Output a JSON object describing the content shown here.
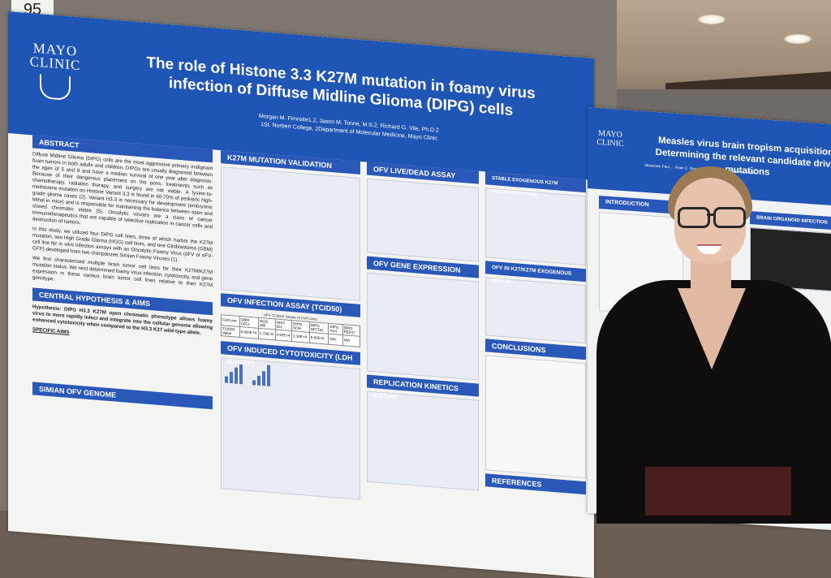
{
  "scene": {
    "board_number": "95"
  },
  "poster_main": {
    "logo": "MAYO CLINIC",
    "title": "The role of Histone 3.3 K27M mutation in foamy virus infection of Diffuse Midline Glioma (DIPG) cells",
    "authors": "Morgan M. Fimreite1,2, Jason M. Tonne, M.S.2, Richard G. Vile, Ph.D.2",
    "affiliations": "1St. Norbert College, 2Department of Molecular Medicine, Mayo Clinic",
    "sections": {
      "abstract": "ABSTRACT",
      "k27m_validation": "K27M MUTATION VALIDATION",
      "ofv_infection": "OFV INFECTION ASSAY (TCID50)",
      "ofv_cytotoxicity": "OFV INDUCED CYTOTOXICITY (LDH ASSAY)",
      "hypothesis": "CENTRAL HYPOTHESIS & AIMS",
      "simian_genome": "SIMIAN OFV GENOME",
      "live_dead": "OFV LIVE/DEAD ASSAY",
      "gene_expression": "OFV GENE EXPRESSION",
      "replication": "REPLICATION KINETICS ASSAY",
      "stable_overexpression": "STABLE EXOGENOUS K27M OVEREXPRESSION",
      "exogenous_cells": "OFV IN K27/K27M EXOGENOUS CELLS",
      "conclusions": "CONCLUSIONS",
      "references": "REFERENCES"
    },
    "abstract_text": "Diffuse Midline Glioma (DIPG) cells are the most aggressive primary malignant brain tumors in both adults and children. DIPGs are usually diagnosed between the ages of 5 and 9 and have a median survival of one year after diagnosis. Because of their dangerous placement on the pons, treatments such as chemotherapy, radiation therapy, and surgery are not viable. A lysine-to-methionine mutation on Histone Variant 3.3 is found in 60-70% of pediatric high-grade glioma cases (2). Variant H3.3 is necessary for development (embryonic lethal in mice) and is responsible for maintaining the balance between open and closed chromatin states (5). Oncolytic viruses are a class of cancer immunotherapeutics that are capable of selective replication in cancer cells and destruction of tumors.",
    "abstract_text_2": "In this study, we utilized four DIPG cell lines, three of which harbor the K27M mutation, two High Grade Glioma (HGG) cell lines, and one Glioblastoma (GBM) cell line for in vitro infection assays with an Oncolytic Foamy Virus (oFV or oFV-GFP) developed from two chimpanzee Simian Foamy Viruses (1).",
    "abstract_text_3": "We first characterized multiple brain tumor cell lines for their K27M/K27M mutation status. We next determined foamy virus infection, cytotoxicity, and gene expression in these various brain tumor cell lines relative to their K27M genotype.",
    "hypothesis_text": "Hypothesis: DIPG H3.3 K27M open chromatin phenotype allows foamy virus to more rapidly infect and integrate into the cellular genome allowing enhanced cytotoxicity when compared to the H3.3 K27 wild-type allele.",
    "specific_aims": "SPECIFIC AIMS",
    "tcid50_caption": "oFV TCID50 Values of Cell Lines",
    "table_headers": [
      "Cell Line",
      "GBM U251",
      "HGG 365",
      "HGG 651",
      "DIPG SOH",
      "DIPG SF7761",
      "DIPG XVII",
      "DIPG PED17"
    ],
    "table_values": [
      "TCID50 Value",
      "8.950E+4",
      "2.79E+6",
      "4.92E+4",
      "2.36E+4",
      "6.92E+6",
      "N/A",
      "N/A"
    ]
  },
  "poster_second": {
    "logo": "MAYO CLINIC",
    "title": "Measles virus brain tropism acquisition: Determining the relevant candidate driver mutations",
    "authors": "Showmick Paul, ... Ryan C. Donohue, PhD, Roberto Cattaneo, PhD",
    "sections": {
      "introduction": "INTRODUCTION",
      "organoid": "BRAIN ORGANOID INFECTION"
    }
  }
}
